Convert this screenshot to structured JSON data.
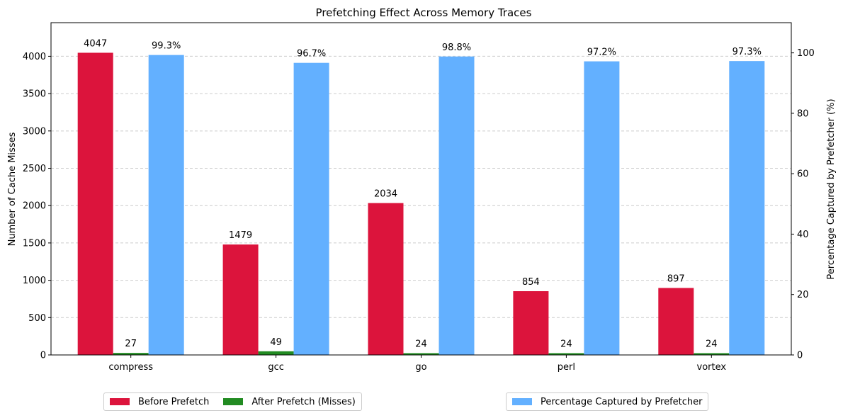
{
  "chart_data": {
    "type": "bar",
    "title": "Prefetching Effect Across Memory Traces",
    "categories": [
      "compress",
      "gcc",
      "go",
      "perl",
      "vortex"
    ],
    "ylabel": "Number of Cache Misses",
    "y2label": "Percentage Captured by Prefetcher (%)",
    "ylim": [
      0,
      4450
    ],
    "y2lim": [
      0,
      110
    ],
    "yticks": [
      0,
      500,
      1000,
      1500,
      2000,
      2500,
      3000,
      3500,
      4000
    ],
    "y2ticks": [
      0,
      20,
      40,
      60,
      80,
      100
    ],
    "grid": "horizontal-dashed",
    "series": [
      {
        "name": "Before Prefetch",
        "axis": "left",
        "color": "#dc143c",
        "values": [
          4047,
          1479,
          2034,
          854,
          897
        ],
        "labels": [
          "4047",
          "1479",
          "2034",
          "854",
          "897"
        ]
      },
      {
        "name": "After Prefetch (Misses)",
        "axis": "left",
        "color": "#228b22",
        "values": [
          27,
          49,
          24,
          24,
          24
        ],
        "labels": [
          "27",
          "49",
          "24",
          "24",
          "24"
        ]
      },
      {
        "name": "Percentage Captured by Prefetcher",
        "axis": "right",
        "color": "#63b0ff",
        "values": [
          99.3,
          96.7,
          98.8,
          97.2,
          97.3
        ],
        "labels": [
          "99.3%",
          "96.7%",
          "98.8%",
          "97.2%",
          "97.3%"
        ]
      }
    ],
    "legend": [
      {
        "placement": "bottom-left",
        "entries": [
          "Before Prefetch",
          "After Prefetch (Misses)"
        ]
      },
      {
        "placement": "bottom-right",
        "entries": [
          "Percentage Captured by Prefetcher"
        ]
      }
    ]
  }
}
